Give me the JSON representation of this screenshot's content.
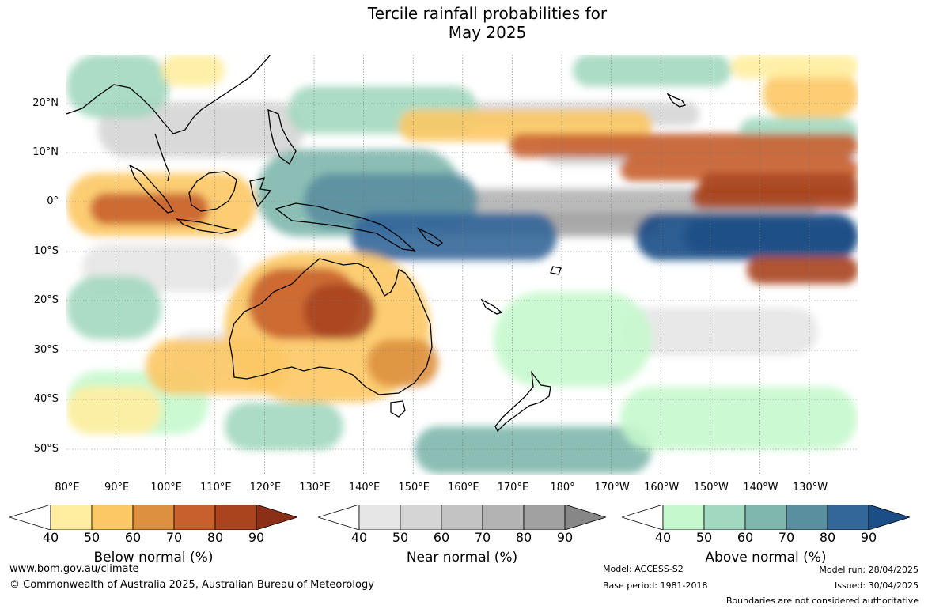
{
  "title": {
    "line1": "Tercile rainfall probabilities for",
    "line2": "May 2025"
  },
  "lat_labels": [
    "20°N",
    "10°N",
    "0°",
    "10°S",
    "20°S",
    "30°S",
    "40°S",
    "50°S"
  ],
  "lon_labels": [
    "80°E",
    "90°E",
    "100°E",
    "110°E",
    "120°E",
    "130°E",
    "140°E",
    "150°E",
    "160°E",
    "170°E",
    "180°",
    "170°W",
    "160°W",
    "150°W",
    "140°W",
    "130°W"
  ],
  "colorbars": [
    {
      "name": "Below normal (%)",
      "ticks": [
        "40",
        "50",
        "60",
        "70",
        "80",
        "90"
      ],
      "colors": [
        "#ffeea0",
        "#fcc864",
        "#dd9140",
        "#c8602e",
        "#a9441f",
        "#8b3016"
      ]
    },
    {
      "name": "Near normal (%)",
      "ticks": [
        "40",
        "50",
        "60",
        "70",
        "80",
        "90"
      ],
      "colors": [
        "#e6e6e6",
        "#d5d5d5",
        "#c3c3c3",
        "#b3b3b3",
        "#a1a1a1",
        "#878787"
      ]
    },
    {
      "name": "Above normal (%)",
      "ticks": [
        "40",
        "50",
        "60",
        "70",
        "80",
        "90"
      ],
      "colors": [
        "#c5f8cc",
        "#a2d8bf",
        "#80b7ad",
        "#5a8fa0",
        "#33679a",
        "#1b4d86"
      ]
    }
  ],
  "footer": {
    "website": "www.bom.gov.au/climate",
    "copyright": "© Commonwealth of Australia 2025, Australian Bureau of Meteorology",
    "model": "Model: ACCESS-S2",
    "base_period": "Base period: 1981-2018",
    "model_run": "Model run: 28/04/2025",
    "issued": "Issued: 30/04/2025",
    "boundaries": "Boundaries are not considered authoritative"
  }
}
